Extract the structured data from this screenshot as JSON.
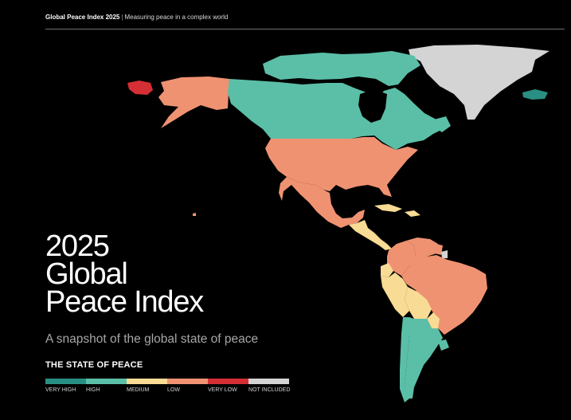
{
  "header": {
    "title": "Global Peace Index 2025",
    "subtitle": "Measuring peace in a complex world"
  },
  "cover": {
    "title_line1": "2025",
    "title_line2": "Global",
    "title_line3": "Peace Index",
    "tagline": "A snapshot of the global state of peace"
  },
  "legend": {
    "title": "THE STATE OF PEACE",
    "categories": [
      {
        "label": "VERY HIGH",
        "color": "#2a8f83"
      },
      {
        "label": "HIGH",
        "color": "#5bbfa8"
      },
      {
        "label": "MEDIUM",
        "color": "#f8db94"
      },
      {
        "label": "LOW",
        "color": "#ef9272"
      },
      {
        "label": "VERY LOW",
        "color": "#d42f34"
      },
      {
        "label": "NOT INCLUDED",
        "color": "#d4d4d4"
      }
    ]
  },
  "map_regions": {
    "canada": "HIGH",
    "greenland": "NOT INCLUDED",
    "iceland": "VERY HIGH",
    "usa": "LOW",
    "alaska_usa": "LOW",
    "russia_far_east": "VERY LOW",
    "mexico": "LOW",
    "central_america": "MEDIUM",
    "colombia": "LOW",
    "venezuela": "LOW",
    "brazil": "LOW",
    "peru": "MEDIUM",
    "bolivia": "MEDIUM",
    "chile": "HIGH",
    "argentina": "HIGH",
    "uruguay": "HIGH",
    "french_guiana": "NOT INCLUDED"
  }
}
